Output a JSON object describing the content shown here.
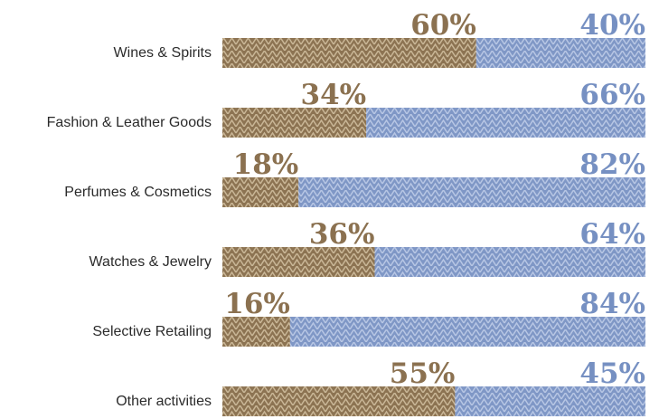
{
  "chart_data": {
    "type": "bar",
    "stacked": true,
    "orientation": "horizontal",
    "unit": "%",
    "xlim": [
      0,
      100
    ],
    "grid": false,
    "legend": "none",
    "categories": [
      "Wines & Spirits",
      "Fashion & Leather Goods",
      "Perfumes & Cosmetics",
      "Watches & Jewelry",
      "Selective Retailing",
      "Other activities"
    ],
    "series": [
      {
        "color": "#8c7352",
        "label_color": "#8b7150",
        "pattern": "chevron",
        "values": [
          60,
          34,
          18,
          36,
          16,
          55
        ],
        "labels": [
          "60%",
          "34%",
          "18%",
          "36%",
          "16%",
          "55%"
        ]
      },
      {
        "color": "#7f97c6",
        "label_color": "#7690c2",
        "pattern": "chevron",
        "values": [
          40,
          66,
          82,
          64,
          84,
          45
        ],
        "labels": [
          "40%",
          "66%",
          "82%",
          "64%",
          "84%",
          "45%"
        ]
      }
    ]
  }
}
